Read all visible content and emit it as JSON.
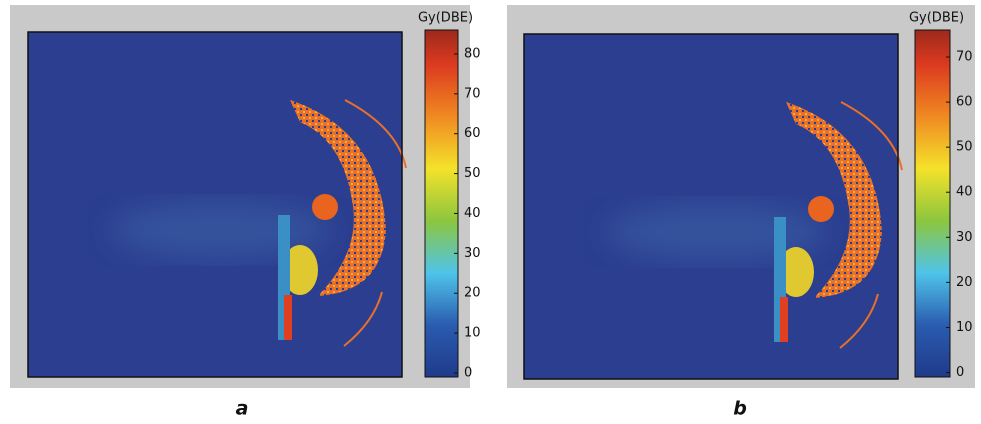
{
  "panels": [
    {
      "label": "a",
      "colorbar": {
        "title": "Gy(DBE)",
        "lim": [
          -1,
          86
        ],
        "ticks": [
          0,
          10,
          20,
          30,
          40,
          50,
          60,
          70,
          80
        ]
      }
    },
    {
      "label": "b",
      "colorbar": {
        "title": "Gy(DBE)",
        "lim": [
          -1,
          76
        ],
        "ticks": [
          0,
          10,
          20,
          30,
          40,
          50,
          60,
          70
        ]
      }
    }
  ]
}
